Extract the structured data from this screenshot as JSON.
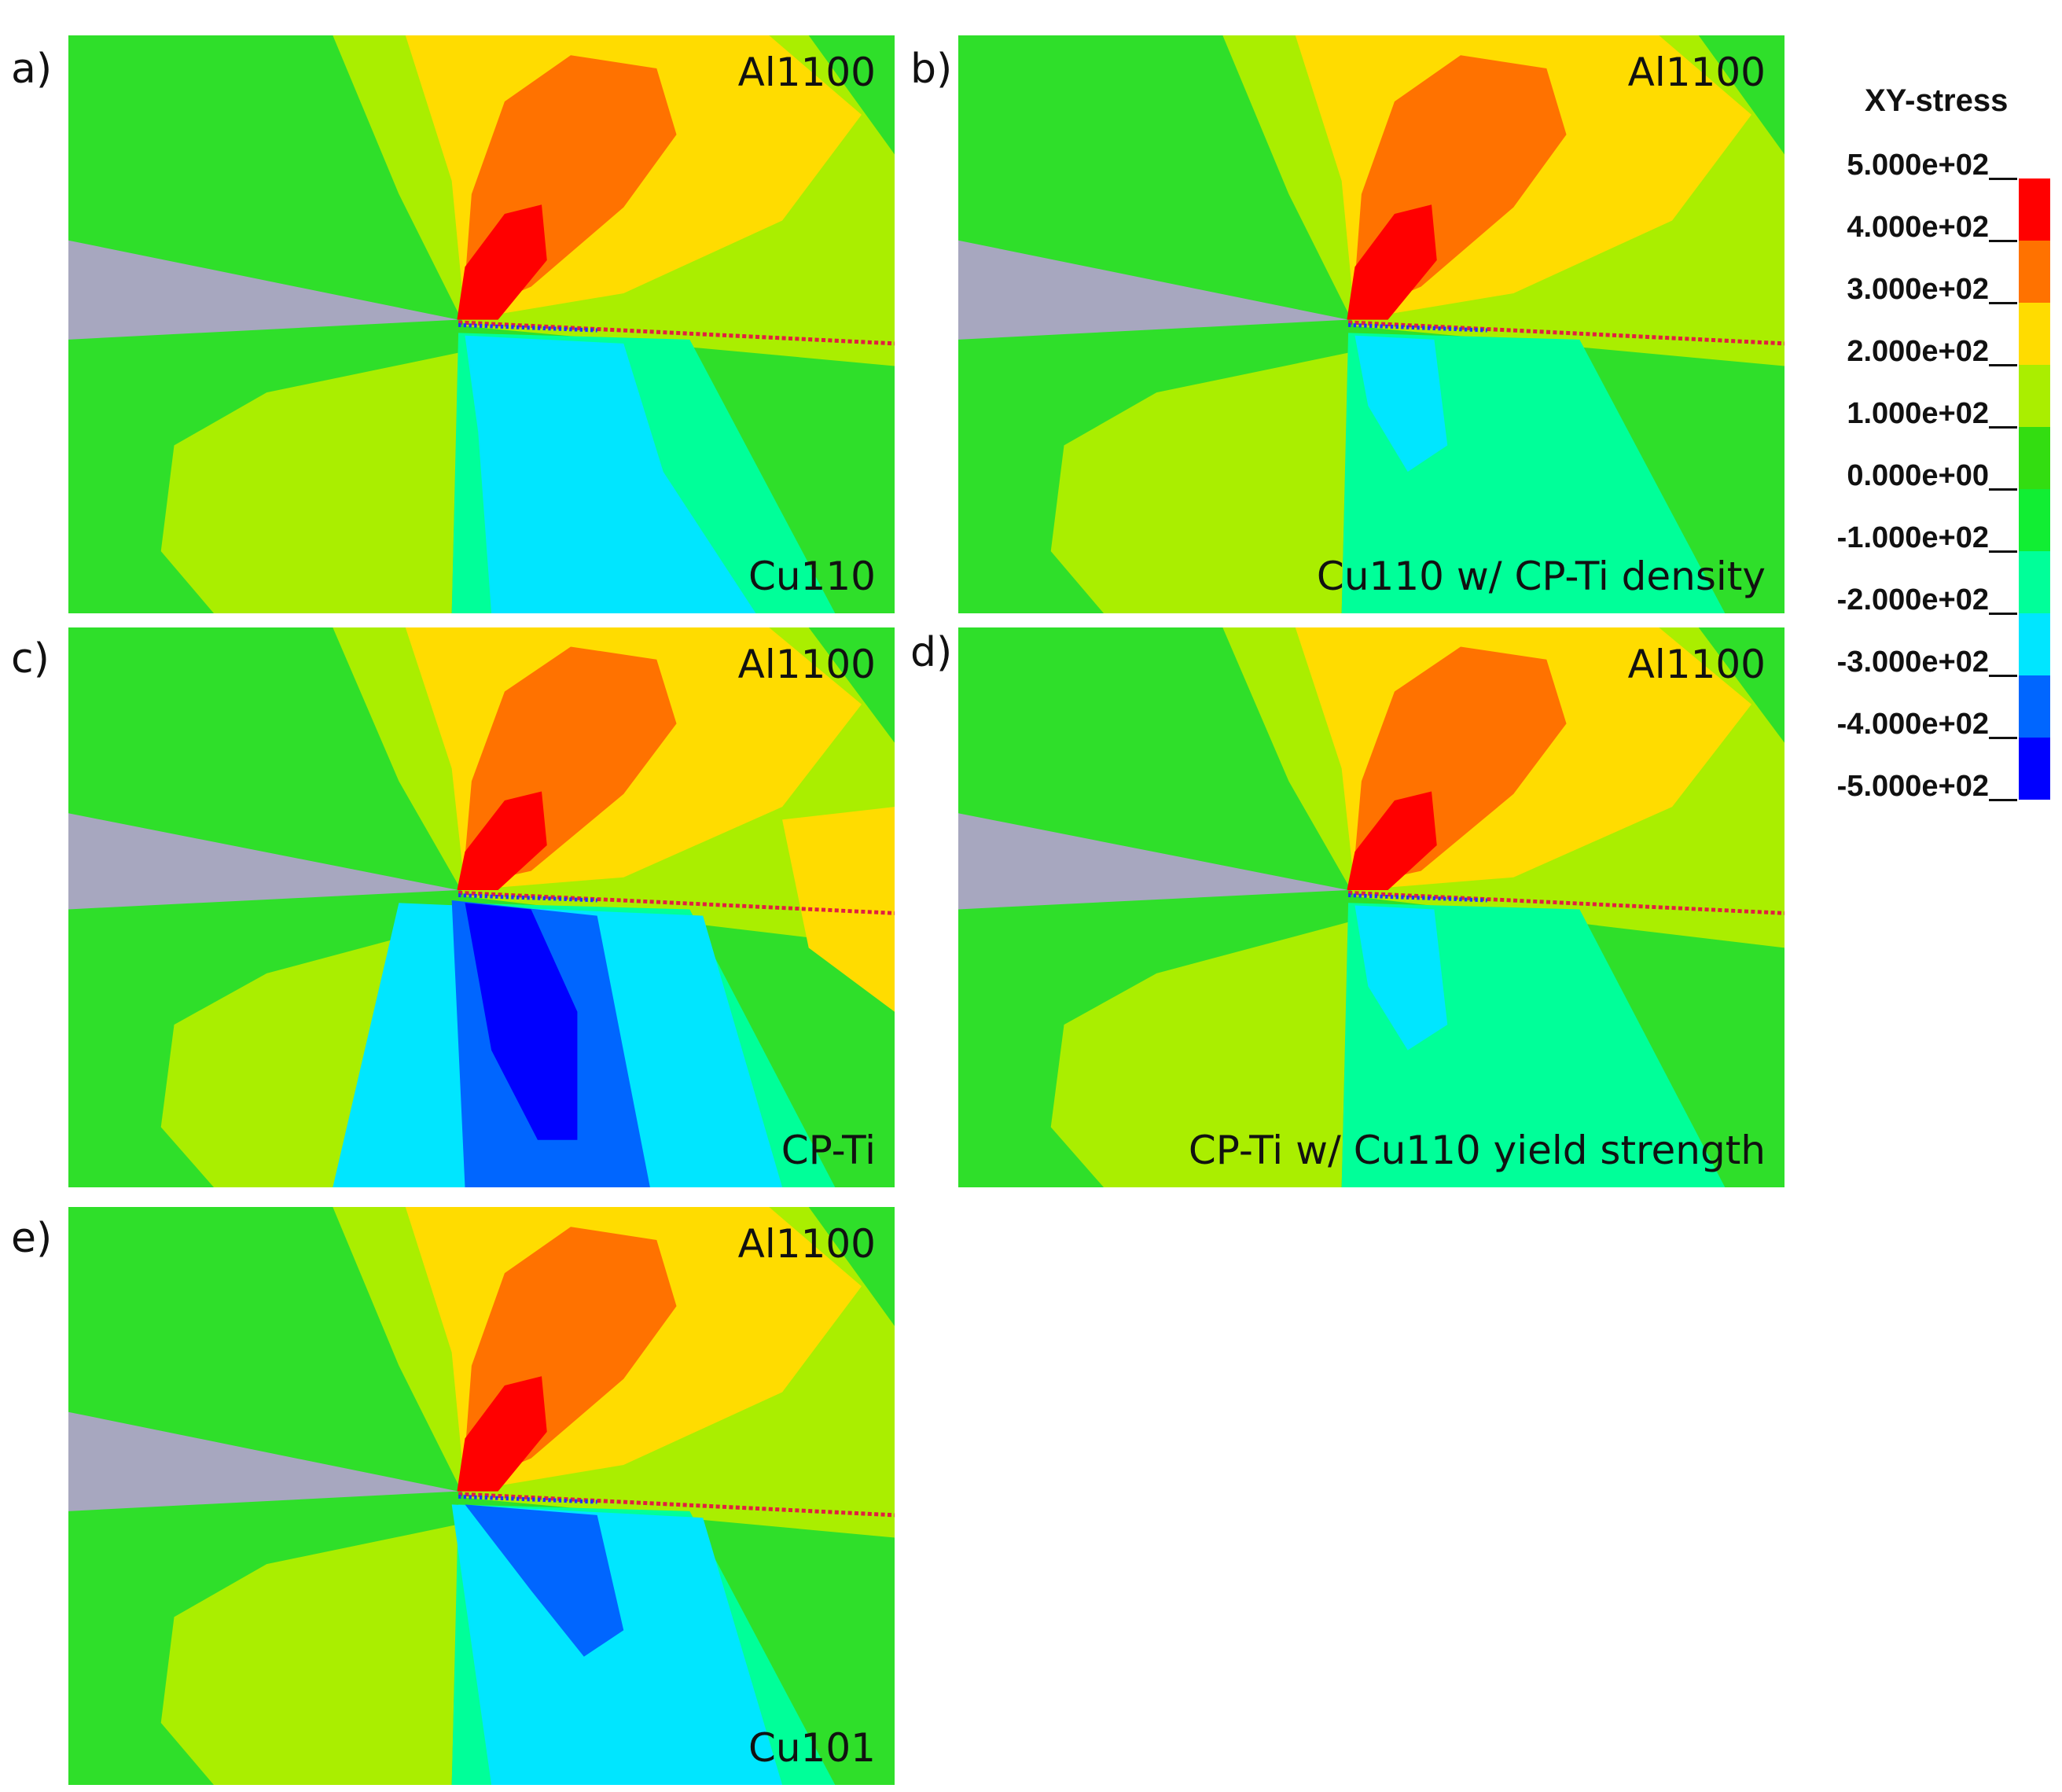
{
  "panels": [
    {
      "letter": "a)",
      "top_label": "Al1100",
      "bottom_label": "Cu110"
    },
    {
      "letter": "b)",
      "top_label": "Al1100",
      "bottom_label": "Cu110 w/ CP-Ti density"
    },
    {
      "letter": "c)",
      "top_label": "Al1100",
      "bottom_label": "CP-Ti"
    },
    {
      "letter": "d)",
      "top_label": "Al1100",
      "bottom_label": "CP-Ti w/ Cu110 yield strength"
    },
    {
      "letter": "e)",
      "top_label": "Al1100",
      "bottom_label": "Cu101"
    }
  ],
  "legend": {
    "title": "XY-stress",
    "ticks": [
      "5.000e+02",
      "4.000e+02",
      "3.000e+02",
      "2.000e+02",
      "1.000e+02",
      "0.000e+00",
      "-1.000e+02",
      "-2.000e+02",
      "-3.000e+02",
      "-4.000e+02",
      "-5.000e+02"
    ],
    "colors": [
      "#ff0000",
      "#ff7200",
      "#ffdc00",
      "#aaee00",
      "#33dd11",
      "#11ee33",
      "#00ff99",
      "#00e6ff",
      "#0066ff",
      "#0000ff"
    ]
  }
}
